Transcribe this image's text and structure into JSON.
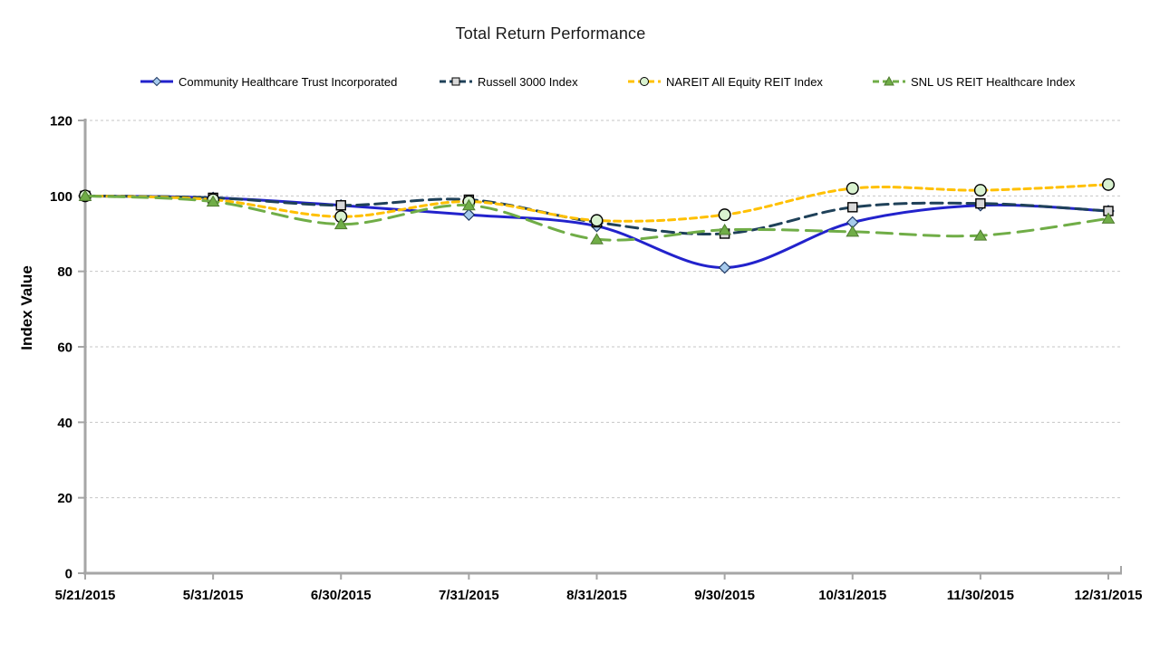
{
  "chart_data": {
    "type": "line",
    "title": "Total Return Performance",
    "ylabel": "Index Value",
    "xlabel": "",
    "ylim": [
      0,
      120
    ],
    "yticks": [
      0,
      20,
      40,
      60,
      80,
      100,
      120
    ],
    "grid": "horizontal-dashed",
    "legend_position": "top",
    "line_style": "smoothed",
    "categories": [
      "5/21/2015",
      "5/31/2015",
      "6/30/2015",
      "7/31/2015",
      "8/31/2015",
      "9/30/2015",
      "10/31/2015",
      "11/30/2015",
      "12/31/2015"
    ],
    "series": [
      {
        "name": "Community Healthcare Trust Incorporated",
        "color": "#2222CC",
        "dash": "solid",
        "marker": "diamond",
        "marker_fill": "#A6CAEC",
        "marker_stroke": "#1F3864",
        "values": [
          100,
          99.5,
          97.5,
          95,
          92,
          81,
          93,
          97.5,
          96
        ]
      },
      {
        "name": "Russell 3000 Index",
        "color": "#1F4159",
        "dash": "dash",
        "marker": "square",
        "marker_fill": "#D9D9D9",
        "marker_stroke": "#000000",
        "values": [
          100,
          99.5,
          97.5,
          99,
          93,
          90,
          97,
          98,
          96
        ]
      },
      {
        "name": "NAREIT All Equity REIT Index",
        "color": "#FFC000",
        "dash": "short-dash",
        "marker": "circle",
        "marker_fill": "#D9F2D0",
        "marker_stroke": "#000000",
        "values": [
          100,
          99,
          94.5,
          98.5,
          93.5,
          95,
          102,
          101.5,
          103
        ]
      },
      {
        "name": "SNL US REIT Healthcare Index",
        "color": "#70AD47",
        "dash": "long-dash",
        "marker": "triangle",
        "marker_fill": "#70AD47",
        "marker_stroke": "#4F7B2F",
        "values": [
          100,
          98.5,
          92.5,
          97.5,
          88.5,
          91,
          90.5,
          89.5,
          94
        ]
      }
    ],
    "colors": {
      "gridline": "#C6C6C6",
      "axis": "#A6A6A6",
      "text": "#000000"
    }
  }
}
